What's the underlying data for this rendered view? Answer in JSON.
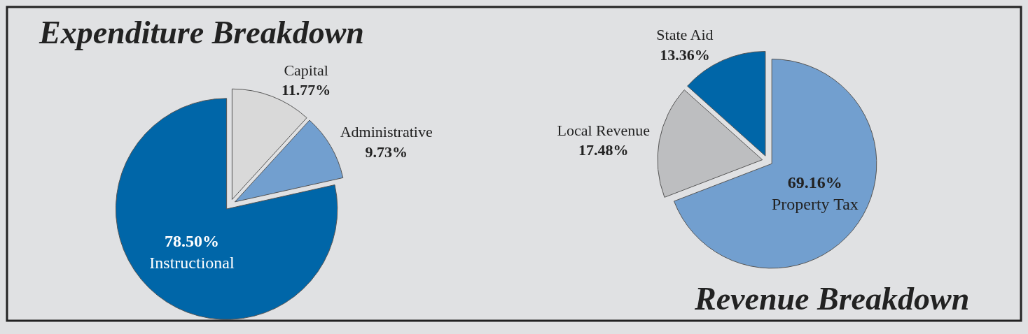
{
  "chart_data": [
    {
      "type": "pie",
      "title": "Expenditure Breakdown",
      "categories": [
        "Capital",
        "Administrative",
        "Instructional"
      ],
      "values": [
        11.77,
        9.73,
        78.5
      ],
      "value_labels": [
        "11.77%",
        "9.73%",
        "78.50%"
      ],
      "colors": [
        "#d9d9d9",
        "#729fcf",
        "#0066a8"
      ]
    },
    {
      "type": "pie",
      "title": "Revenue Breakdown",
      "categories": [
        "Property Tax",
        "Local Revenue",
        "State Aid"
      ],
      "values": [
        69.16,
        17.48,
        13.36
      ],
      "value_labels": [
        "69.16%",
        "17.48%",
        "13.36%"
      ],
      "colors": [
        "#729fcf",
        "#bdbec0",
        "#0066a8"
      ]
    }
  ]
}
